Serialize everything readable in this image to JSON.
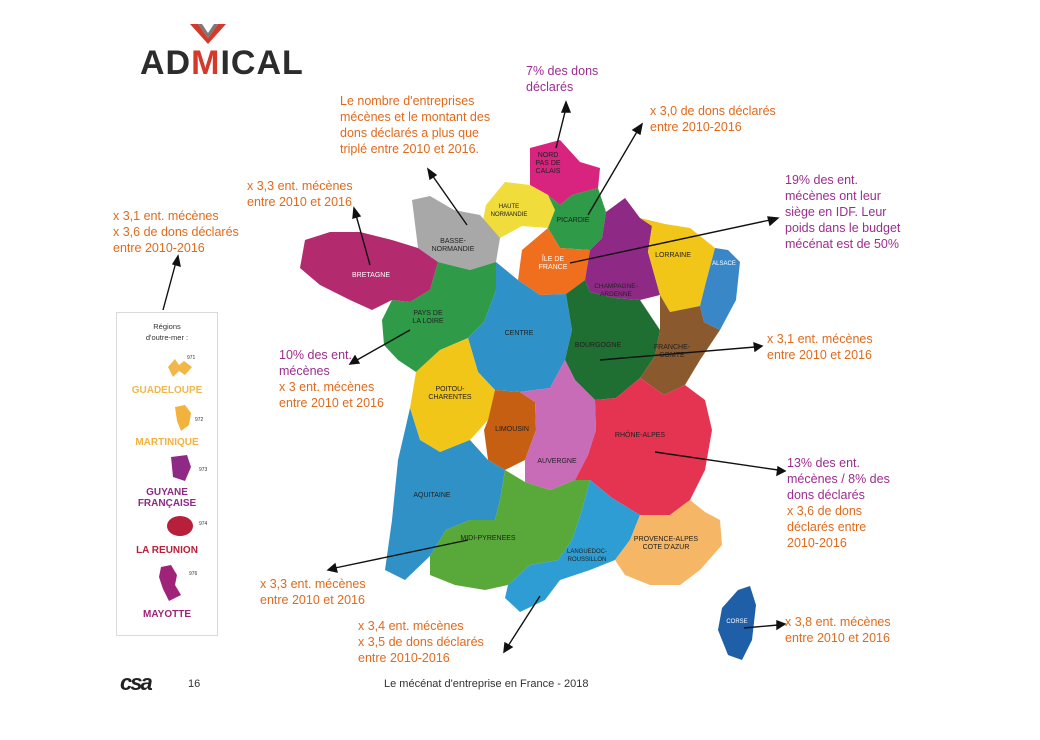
{
  "logo": {
    "text_start": "AD",
    "text_m": "M",
    "text_end": "ICAL",
    "accent": "#d33a2b"
  },
  "annotations": {
    "top_center": "Le nombre d'entreprises\nmécènes et le montant des\ndons déclarés a plus que\ntriplé entre 2010 et 2016.",
    "nord": "7% des dons\ndéclarés",
    "picardie": "x 3,0 de dons déclarés\nentre 2010-2016",
    "normandie": "x 3,3 ent. mécènes\nentre 2010 et 2016",
    "bretagne": "x 3,1 ent. mécènes\nx 3,6 de dons déclarés\nentre 2010-2016",
    "idf": "19% des ent.\nmécènes ont leur\nsiège en IDF. Leur\npoids dans le budget\nmécénat est de 50%",
    "bourgogne": "x 3,1 ent. mécènes\nentre 2010 et 2016",
    "pays_loire_a": "10% des ent.\nmécènes",
    "pays_loire_b": "x 3 ent. mécènes\nentre 2010 et 2016",
    "rhone_a": "13% des ent.\nmécènes / 8% des\ndons déclarés",
    "rhone_b": "x 3,6 de dons\ndéclarés entre\n2010-2016",
    "midi": "x 3,3 ent. mécènes\nentre 2010 et 2016",
    "languedoc": "x 3,4 ent. mécènes\nx 3,5 de dons déclarés\nentre 2010-2016",
    "corse": "x 3,8 ent. mécènes\nentre 2010 et 2016"
  },
  "regions": {
    "nord": "NORD\nPAS DE\nCALAIS",
    "haute_normandie": "HAUTE\nNORMANDIE",
    "picardie": "PICARDIE",
    "basse_normandie": "BASSE-\nNORMANDIE",
    "bretagne": "BRETAGNE",
    "idf": "ÎLE DE\nFRANCE",
    "champagne": "CHAMPAGNE-\nARDENNE",
    "lorraine": "LORRAINE",
    "alsace": "ALSACE",
    "pays_loire": "PAYS DE\nLA LOIRE",
    "centre": "CENTRE",
    "bourgogne": "BOURGOGNE",
    "franche_comte": "FRANCHE-\nCOMTE",
    "poitou": "POITOU-\nCHARENTES",
    "limousin": "LIMOUSIN",
    "auvergne": "AUVERGNE",
    "rhone_alpes": "RHÔNE-ALPES",
    "aquitaine": "AQUITAINE",
    "midi": "MIDI-PYRENEES",
    "languedoc": "LANGUEDOC-\nROUSSILLON",
    "paca": "PROVENCE-ALPES\nCOTE D'AZUR",
    "corse": "CORSE"
  },
  "outremer": {
    "title": "Régions\nd'outre-mer :",
    "guadeloupe": "GUADELOUPE",
    "martinique": "MARTINIQUE",
    "guyane": "GUYANE\nFRANÇAISE",
    "reunion": "LA REUNION",
    "mayotte": "MAYOTTE",
    "code_971": "971",
    "code_972": "972",
    "code_973": "973",
    "code_974": "974",
    "code_976": "976"
  },
  "colors": {
    "orange": "#e06a1c",
    "purple": "#9b2d8e",
    "guadeloupe": "#f2b74b",
    "martinique": "#f3b23e",
    "guyane": "#8e2a86",
    "reunion": "#b71f3b",
    "mayotte": "#a0237a"
  },
  "footer": {
    "brand": "csa",
    "page": "16",
    "title": "Le mécénat d'entreprise en France - 2018"
  }
}
